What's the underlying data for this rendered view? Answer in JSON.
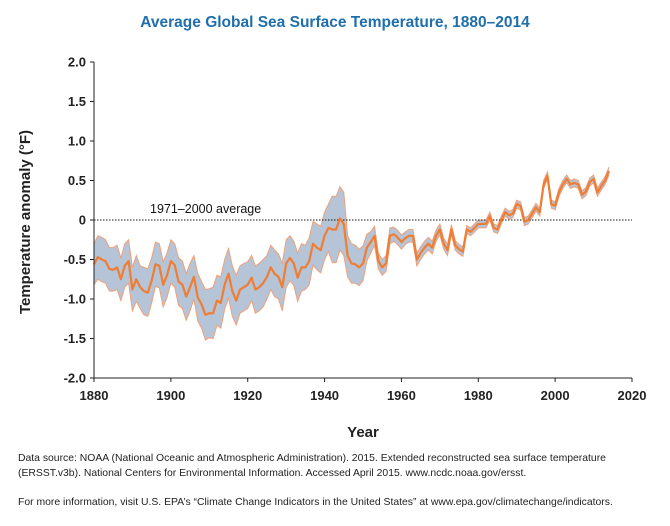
{
  "chart_data": {
    "type": "area",
    "title": "Average Global Sea Surface Temperature, 1880–2014",
    "xlabel": "Year",
    "ylabel": "Temperature anomaly (°F)",
    "xlim": [
      1880,
      2020
    ],
    "ylim": [
      -2.0,
      2.0
    ],
    "x_ticks": [
      1880,
      1900,
      1920,
      1940,
      1960,
      1980,
      2000,
      2020
    ],
    "y_ticks": [
      2.0,
      1.5,
      1.0,
      0.5,
      0,
      -0.5,
      -1.0,
      -1.5,
      -2.0
    ],
    "y_tick_labels": [
      "2.0",
      "1.5",
      "1.0",
      "0.5",
      "0",
      "-0.5",
      "-1.0",
      "-1.5",
      "-2.0"
    ],
    "grid": false,
    "reference_line": {
      "y": 0,
      "label": "1971–2000 average"
    },
    "series": [
      {
        "x": [
          1880,
          1881,
          1882,
          1883,
          1884,
          1885,
          1886,
          1887,
          1888,
          1889,
          1890,
          1891,
          1892,
          1893,
          1894,
          1895,
          1896,
          1897,
          1898,
          1899,
          1900,
          1901,
          1902,
          1903,
          1904,
          1905,
          1906,
          1907,
          1908,
          1909,
          1910,
          1911,
          1912,
          1913,
          1914,
          1915,
          1916,
          1917,
          1918,
          1919,
          1920,
          1921,
          1922,
          1923,
          1924,
          1925,
          1926,
          1927,
          1928,
          1929,
          1930,
          1931,
          1932,
          1933,
          1934,
          1935,
          1936,
          1937,
          1938,
          1939,
          1940,
          1941,
          1942,
          1943,
          1944,
          1945,
          1946,
          1947,
          1948,
          1949,
          1950,
          1951,
          1952,
          1953,
          1954,
          1955,
          1956,
          1957,
          1958,
          1959,
          1960,
          1961,
          1962,
          1963,
          1964,
          1965,
          1966,
          1967,
          1968,
          1969,
          1970,
          1971,
          1972,
          1973,
          1974,
          1975,
          1976,
          1977,
          1978,
          1979,
          1980,
          1981,
          1982,
          1983,
          1984,
          1985,
          1986,
          1987,
          1988,
          1989,
          1990,
          1991,
          1992,
          1993,
          1994,
          1995,
          1996,
          1997,
          1998,
          1999,
          2000,
          2001,
          2002,
          2003,
          2004,
          2005,
          2006,
          2007,
          2008,
          2009,
          2010,
          2011,
          2012,
          2013,
          2014
        ],
        "values": [
          -0.56,
          -0.47,
          -0.5,
          -0.52,
          -0.62,
          -0.63,
          -0.6,
          -0.75,
          -0.58,
          -0.52,
          -0.88,
          -0.75,
          -0.85,
          -0.9,
          -0.92,
          -0.77,
          -0.56,
          -0.58,
          -0.82,
          -0.7,
          -0.52,
          -0.57,
          -0.78,
          -0.82,
          -0.97,
          -0.85,
          -0.72,
          -0.98,
          -1.07,
          -1.2,
          -1.18,
          -1.18,
          -1.02,
          -1.05,
          -0.82,
          -0.68,
          -0.9,
          -1.02,
          -0.88,
          -0.85,
          -0.82,
          -0.73,
          -0.88,
          -0.85,
          -0.8,
          -0.72,
          -0.6,
          -0.68,
          -0.72,
          -0.85,
          -0.55,
          -0.48,
          -0.55,
          -0.73,
          -0.6,
          -0.6,
          -0.52,
          -0.3,
          -0.35,
          -0.38,
          -0.2,
          -0.1,
          -0.12,
          -0.12,
          0.02,
          -0.05,
          -0.45,
          -0.55,
          -0.56,
          -0.6,
          -0.55,
          -0.35,
          -0.28,
          -0.2,
          -0.52,
          -0.6,
          -0.55,
          -0.2,
          -0.18,
          -0.22,
          -0.28,
          -0.23,
          -0.2,
          -0.2,
          -0.5,
          -0.42,
          -0.35,
          -0.3,
          -0.35,
          -0.2,
          -0.12,
          -0.3,
          -0.38,
          -0.12,
          -0.32,
          -0.37,
          -0.4,
          -0.12,
          -0.15,
          -0.1,
          -0.05,
          -0.05,
          -0.05,
          0.05,
          -0.1,
          -0.12,
          0.0,
          0.1,
          0.06,
          0.08,
          0.2,
          0.18,
          -0.02,
          0.0,
          0.08,
          0.16,
          0.1,
          0.45,
          0.56,
          0.2,
          0.18,
          0.35,
          0.45,
          0.52,
          0.45,
          0.47,
          0.45,
          0.32,
          0.36,
          0.48,
          0.52,
          0.35,
          0.43,
          0.5,
          0.62
        ]
      },
      {
        "x": [
          1880,
          1881,
          1882,
          1883,
          1884,
          1885,
          1886,
          1887,
          1888,
          1889,
          1890,
          1891,
          1892,
          1893,
          1894,
          1895,
          1896,
          1897,
          1898,
          1899,
          1900,
          1901,
          1902,
          1903,
          1904,
          1905,
          1906,
          1907,
          1908,
          1909,
          1910,
          1911,
          1912,
          1913,
          1914,
          1915,
          1916,
          1917,
          1918,
          1919,
          1920,
          1921,
          1922,
          1923,
          1924,
          1925,
          1926,
          1927,
          1928,
          1929,
          1930,
          1931,
          1932,
          1933,
          1934,
          1935,
          1936,
          1937,
          1938,
          1939,
          1940,
          1941,
          1942,
          1943,
          1944,
          1945,
          1946,
          1947,
          1948,
          1949,
          1950,
          1951,
          1952,
          1953,
          1954,
          1955,
          1956,
          1957,
          1958,
          1959,
          1960,
          1961,
          1962,
          1963,
          1964,
          1965,
          1966,
          1967,
          1968,
          1969,
          1970,
          1971,
          1972,
          1973,
          1974,
          1975,
          1976,
          1977,
          1978,
          1979,
          1980,
          1981,
          1982,
          1983,
          1984,
          1985,
          1986,
          1987,
          1988,
          1989,
          1990,
          1991,
          1992,
          1993,
          1994,
          1995,
          1996,
          1997,
          1998,
          1999,
          2000,
          2001,
          2002,
          2003,
          2004,
          2005,
          2006,
          2007,
          2008,
          2009,
          2010,
          2011,
          2012,
          2013,
          2014
        ],
        "upper": [
          -0.3,
          -0.2,
          -0.22,
          -0.25,
          -0.35,
          -0.35,
          -0.32,
          -0.48,
          -0.3,
          -0.25,
          -0.6,
          -0.45,
          -0.58,
          -0.6,
          -0.62,
          -0.48,
          -0.28,
          -0.3,
          -0.53,
          -0.42,
          -0.25,
          -0.3,
          -0.48,
          -0.52,
          -0.68,
          -0.55,
          -0.45,
          -0.68,
          -0.78,
          -0.88,
          -0.87,
          -0.85,
          -0.7,
          -0.72,
          -0.5,
          -0.36,
          -0.58,
          -0.7,
          -0.58,
          -0.55,
          -0.53,
          -0.45,
          -0.58,
          -0.55,
          -0.5,
          -0.45,
          -0.32,
          -0.38,
          -0.43,
          -0.55,
          -0.25,
          -0.2,
          -0.27,
          -0.42,
          -0.3,
          -0.32,
          -0.23,
          -0.02,
          -0.05,
          -0.08,
          0.1,
          0.2,
          0.3,
          0.3,
          0.42,
          0.35,
          -0.2,
          -0.3,
          -0.32,
          -0.37,
          -0.33,
          -0.18,
          -0.15,
          -0.08,
          -0.42,
          -0.5,
          -0.45,
          -0.1,
          -0.09,
          -0.13,
          -0.19,
          -0.15,
          -0.12,
          -0.12,
          -0.42,
          -0.34,
          -0.27,
          -0.22,
          -0.27,
          -0.13,
          -0.05,
          -0.23,
          -0.31,
          -0.06,
          -0.26,
          -0.31,
          -0.34,
          -0.07,
          -0.1,
          -0.05,
          0.0,
          0.0,
          0.0,
          0.1,
          -0.05,
          -0.07,
          0.05,
          0.15,
          0.11,
          0.13,
          0.25,
          0.23,
          0.03,
          0.05,
          0.13,
          0.21,
          0.15,
          0.5,
          0.61,
          0.25,
          0.23,
          0.4,
          0.5,
          0.57,
          0.5,
          0.52,
          0.5,
          0.37,
          0.41,
          0.53,
          0.57,
          0.4,
          0.48,
          0.55,
          0.67
        ],
        "lower": [
          -0.82,
          -0.75,
          -0.78,
          -0.8,
          -0.9,
          -0.9,
          -0.88,
          -1.02,
          -0.85,
          -0.8,
          -1.15,
          -1.03,
          -1.12,
          -1.2,
          -1.22,
          -1.05,
          -0.84,
          -0.86,
          -1.1,
          -0.98,
          -0.8,
          -0.85,
          -1.08,
          -1.12,
          -1.27,
          -1.15,
          -1.0,
          -1.28,
          -1.37,
          -1.52,
          -1.49,
          -1.5,
          -1.33,
          -1.37,
          -1.13,
          -0.99,
          -1.22,
          -1.33,
          -1.18,
          -1.15,
          -1.12,
          -1.02,
          -1.18,
          -1.15,
          -1.1,
          -1.0,
          -0.88,
          -0.97,
          -1.0,
          -1.15,
          -0.85,
          -0.77,
          -0.83,
          -1.03,
          -0.9,
          -0.88,
          -0.82,
          -0.57,
          -0.63,
          -0.67,
          -0.5,
          -0.4,
          -0.54,
          -0.54,
          -0.38,
          -0.45,
          -0.72,
          -0.8,
          -0.8,
          -0.83,
          -0.77,
          -0.52,
          -0.42,
          -0.32,
          -0.62,
          -0.7,
          -0.65,
          -0.3,
          -0.27,
          -0.31,
          -0.37,
          -0.31,
          -0.28,
          -0.28,
          -0.58,
          -0.5,
          -0.43,
          -0.38,
          -0.43,
          -0.27,
          -0.19,
          -0.37,
          -0.45,
          -0.18,
          -0.38,
          -0.43,
          -0.46,
          -0.17,
          -0.2,
          -0.15,
          -0.1,
          -0.1,
          -0.1,
          0.0,
          -0.15,
          -0.17,
          -0.05,
          0.05,
          0.01,
          0.03,
          0.15,
          0.13,
          -0.07,
          -0.05,
          0.03,
          0.11,
          0.05,
          0.4,
          0.51,
          0.15,
          0.13,
          0.3,
          0.4,
          0.47,
          0.4,
          0.42,
          0.4,
          0.27,
          0.31,
          0.43,
          0.47,
          0.3,
          0.38,
          0.45,
          0.57
        ]
      }
    ],
    "colors": {
      "line": "#ef7d33",
      "band_fill": "#b5c4d6",
      "band_edge": "#f0a07a",
      "title": "#1f6fad",
      "text": "#222222"
    }
  },
  "notes": {
    "source": "Data source: NOAA (National Oceanic and Atmospheric Administration). 2015. Extended reconstructed sea surface temperature (ERSST.v3b). National Centers for Environmental Information. Accessed April 2015. www.ncdc.noaa.gov/ersst.",
    "info": "For more information, visit U.S. EPA’s “Climate Change Indicators in the United States” at www.epa.gov/climatechange/indicators."
  }
}
